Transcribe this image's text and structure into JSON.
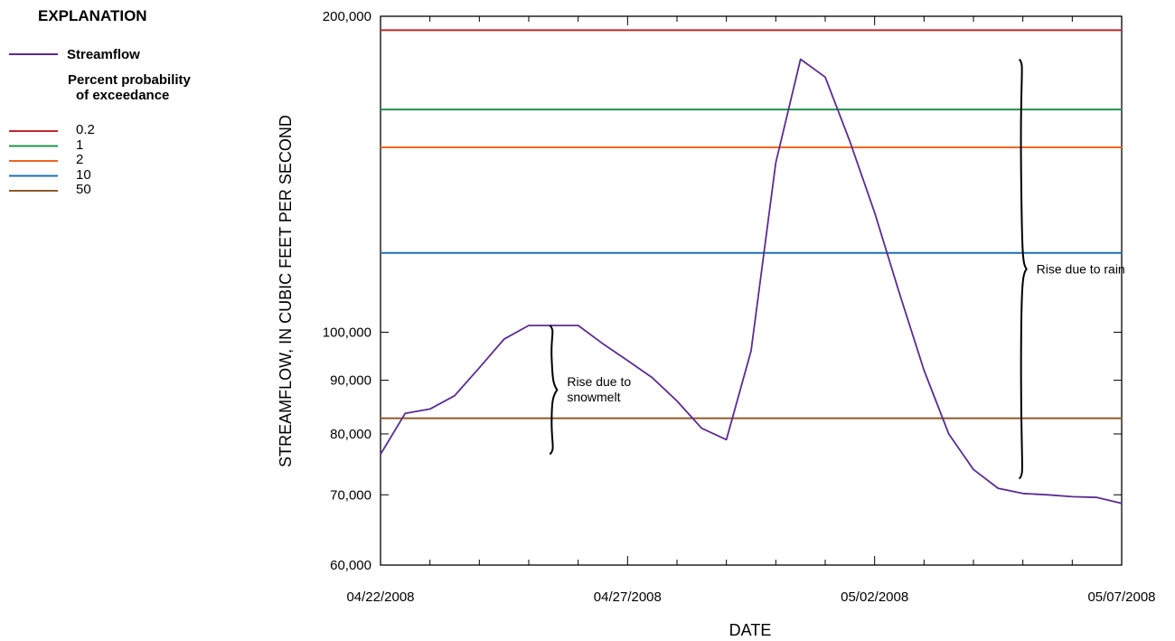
{
  "legend": {
    "heading": "EXPLANATION",
    "streamflow_label": "Streamflow",
    "subtitle_line1": "Percent probability",
    "subtitle_line2": "of exceedance"
  },
  "chart_data": {
    "type": "line",
    "xlabel": "DATE",
    "ylabel": "STREAMFLOW, IN CUBIC FEET PER SECOND",
    "y_scale": "log",
    "ylim": [
      60000,
      200000
    ],
    "xlim": [
      "04/22/2008",
      "05/07/2008"
    ],
    "x_ticks": [
      "04/22/2008",
      "04/27/2008",
      "05/02/2008",
      "05/07/2008"
    ],
    "y_ticks": [
      "60,000",
      "70,000",
      "80,000",
      "90,000",
      "100,000",
      "200,000"
    ],
    "y_tick_values": [
      60000,
      70000,
      80000,
      90000,
      100000,
      200000
    ],
    "grid": false,
    "series": [
      {
        "name": "Streamflow",
        "color": "#5b2c91",
        "x": [
          "04/22/2008 00:00",
          "04/22/2008 12:00",
          "04/23/2008 00:00",
          "04/23/2008 12:00",
          "04/24/2008 00:00",
          "04/24/2008 12:00",
          "04/25/2008 00:00",
          "04/25/2008 12:00",
          "04/26/2008 00:00",
          "04/26/2008 12:00",
          "04/27/2008 00:00",
          "04/27/2008 12:00",
          "04/28/2008 00:00",
          "04/28/2008 12:00",
          "04/29/2008 00:00",
          "04/29/2008 12:00",
          "04/30/2008 00:00",
          "04/30/2008 12:00",
          "05/01/2008 00:00",
          "05/01/2008 12:00",
          "05/02/2008 00:00",
          "05/02/2008 12:00",
          "05/03/2008 00:00",
          "05/03/2008 12:00",
          "05/04/2008 00:00",
          "05/04/2008 12:00",
          "05/05/2008 00:00",
          "05/05/2008 12:00",
          "05/06/2008 00:00",
          "05/06/2008 12:00",
          "05/07/2008 00:00"
        ],
        "y": [
          76500,
          83700,
          84500,
          87000,
          92500,
          98500,
          101500,
          101500,
          101500,
          97500,
          94000,
          90500,
          86000,
          81000,
          79000,
          96000,
          145000,
          182000,
          175000,
          152000,
          130000,
          109000,
          92000,
          80000,
          74000,
          71000,
          70200,
          70000,
          69700,
          69600,
          68700
        ]
      }
    ],
    "reference_lines": [
      {
        "label": "0.2",
        "value": 194000,
        "color": "#c1272d"
      },
      {
        "label": "1",
        "value": 163000,
        "color": "#22934c"
      },
      {
        "label": "2",
        "value": 150000,
        "color": "#f26522"
      },
      {
        "label": "10",
        "value": 119000,
        "color": "#1d70b0"
      },
      {
        "label": "50",
        "value": 82800,
        "color": "#8b5a2b"
      }
    ],
    "annotations": [
      {
        "text_line1": "Rise due to",
        "text_line2": "snowmelt",
        "x": "04/25/2008 12:00",
        "y_range": [
          76500,
          101500
        ]
      },
      {
        "text_line1": "Rise due to rain",
        "text_line2": "",
        "x": "05/05/2008 00:00",
        "y_range": [
          72500,
          182000
        ]
      }
    ]
  }
}
